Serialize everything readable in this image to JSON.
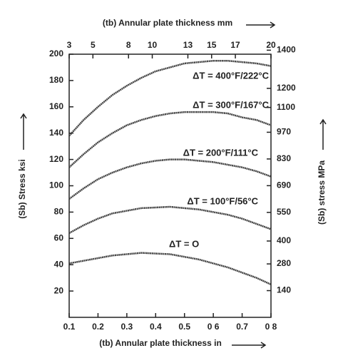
{
  "chart_data": {
    "type": "line",
    "x_label": "(tb) Annular plate thickness in",
    "x2_label": "(tb) Annular plate thickness mm",
    "y_label": "(Sb) Stress ksi",
    "y2_label": "(Sb) stress MPa",
    "x": [
      0.1,
      0.15,
      0.2,
      0.25,
      0.3,
      0.35,
      0.4,
      0.45,
      0.5,
      0.55,
      0.6,
      0.65,
      0.7,
      0.75,
      0.8
    ],
    "xlim": [
      0.1,
      0.8
    ],
    "xticks": [
      0.1,
      0.2,
      0.3,
      0.4,
      0.5,
      {
        "value": 0.6,
        "label": "0 6"
      },
      0.7,
      {
        "value": 0.8,
        "label": "0 8"
      }
    ],
    "x2lim": [
      3,
      20
    ],
    "x2ticks": [
      3,
      5,
      8,
      10,
      13,
      15,
      17,
      20
    ],
    "ylim": [
      0,
      200
    ],
    "yticks": [
      20,
      40,
      60,
      80,
      100,
      120,
      140,
      160,
      180,
      200
    ],
    "y2lim": [
      0,
      1379
    ],
    "y2ticks": [
      140,
      280,
      400,
      550,
      690,
      830,
      970,
      1100,
      1200,
      1400
    ],
    "series": [
      {
        "name": "ΔT = 400°F/222°C",
        "color": "#444444",
        "values": [
          138,
          150,
          160,
          169,
          176,
          182,
          187,
          190,
          193,
          194,
          195,
          195,
          194,
          193,
          191
        ]
      },
      {
        "name": "ΔT = 300°F/167°C",
        "color": "#444444",
        "values": [
          114,
          124,
          133,
          140,
          146,
          150,
          153,
          155,
          156,
          156,
          156,
          155,
          152,
          150,
          146
        ]
      },
      {
        "name": "ΔT = 200°F/111°C",
        "color": "#444444",
        "values": [
          90,
          98,
          105,
          110,
          114,
          117,
          119,
          120,
          120,
          119,
          118,
          116,
          114,
          111,
          107
        ]
      },
      {
        "name": "ΔT = 100°F/56°C",
        "color": "#444444",
        "values": [
          64,
          70,
          75,
          79,
          81,
          83,
          83.5,
          84,
          83,
          82,
          80,
          78,
          75,
          71,
          67
        ]
      },
      {
        "name": "ΔT = O",
        "color": "#444444",
        "values": [
          41,
          43,
          45,
          47,
          48,
          49,
          48.5,
          48,
          46,
          44,
          41,
          38,
          34,
          30,
          25
        ]
      }
    ]
  }
}
